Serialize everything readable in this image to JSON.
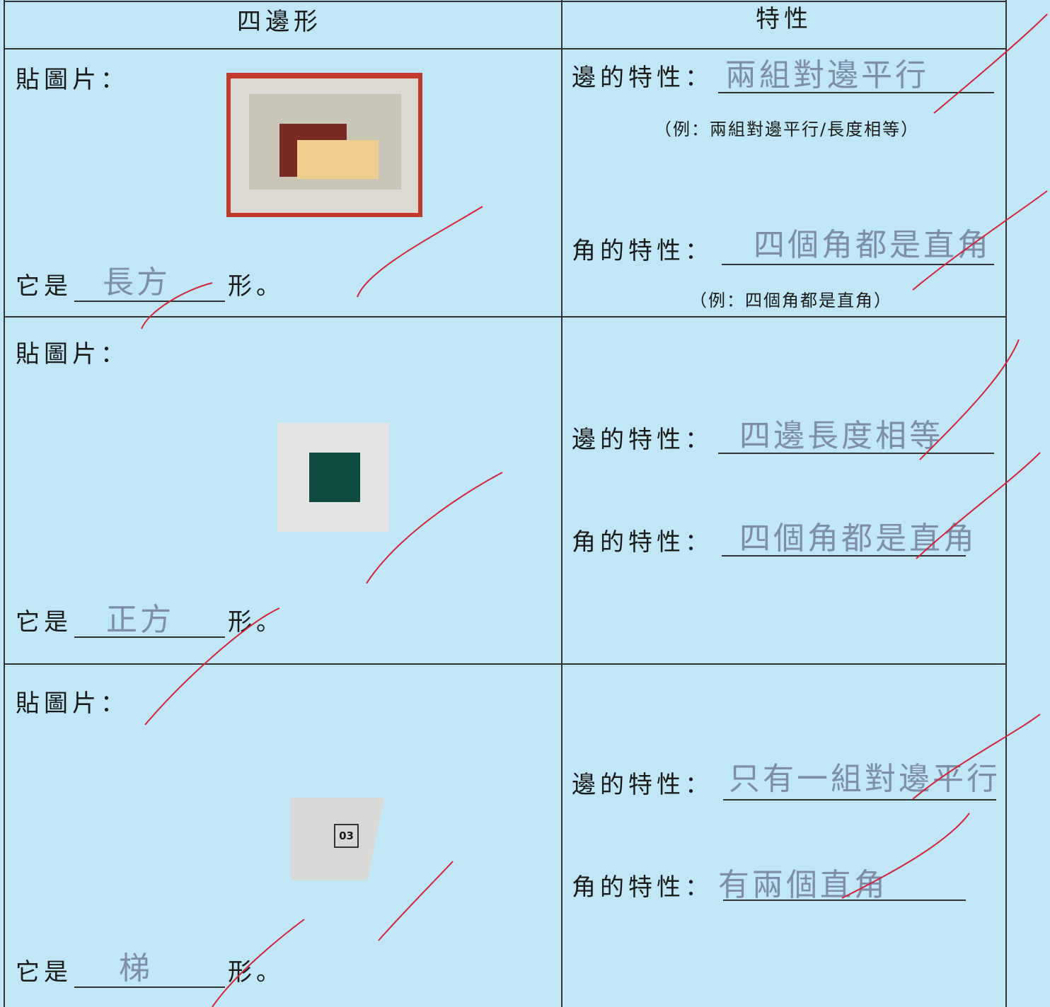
{
  "header": {
    "col1": "四邊形",
    "col2": "特性"
  },
  "rows": [
    {
      "paste_label": "貼圖片：",
      "answer_prefix": "它是",
      "answer": "長方",
      "answer_suffix": "形。",
      "side_label": "邊的特性：",
      "side_answer": "兩組對邊平行",
      "side_example": "（例：兩組對邊平行/長度相等）",
      "angle_label": "角的特性：",
      "angle_answer": "四個角都是直角",
      "angle_example": "（例：四個角都是直角）"
    },
    {
      "paste_label": "貼圖片：",
      "answer_prefix": "它是",
      "answer": "正方",
      "answer_suffix": "形。",
      "side_label": "邊的特性：",
      "side_answer": "四邊長度相等",
      "angle_label": "角的特性：",
      "angle_answer": "四個角都是直角"
    },
    {
      "paste_label": "貼圖片：",
      "answer_prefix": "它是",
      "answer": "梯",
      "answer_suffix": "形。",
      "picture_label": "03",
      "side_label": "邊的特性：",
      "side_answer": "只有一組對邊平行",
      "angle_label": "角的特性：",
      "angle_answer": "有兩個直角"
    }
  ]
}
